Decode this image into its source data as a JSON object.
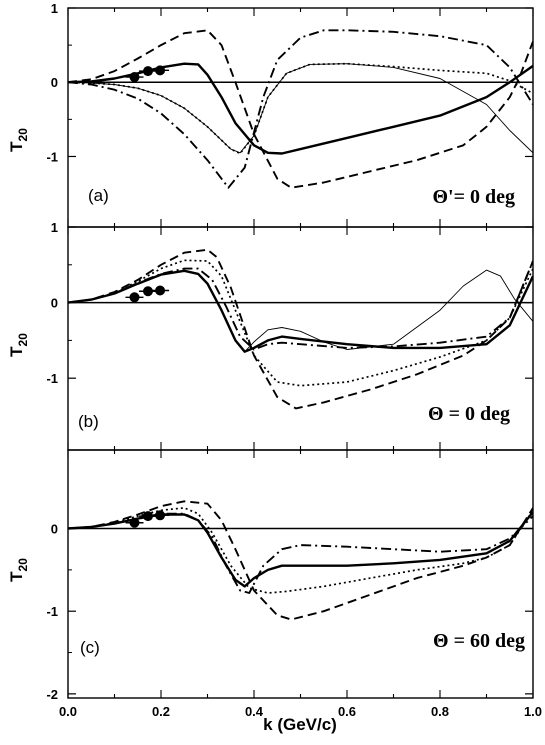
{
  "chart_data": {
    "type": "line",
    "xlabel": "k (GeV/c)",
    "xlim": [
      0.0,
      1.0
    ],
    "x_ticks": [
      "0.0",
      "0.2",
      "0.4",
      "0.6",
      "0.8",
      "1.0"
    ],
    "line_styles": [
      "solid-thick",
      "solid-thin",
      "dashed",
      "dotted",
      "dash-dot"
    ],
    "panels": [
      {
        "tag": "(a)",
        "angle_label": "Θ'= 0 deg",
        "ylabel_main": "T",
        "ylabel_sub": "20",
        "ylim": [
          -1.95,
          1.0
        ],
        "y_ticks": [
          {
            "value": 1,
            "label": "1"
          },
          {
            "value": 0,
            "label": "0"
          },
          {
            "value": -1,
            "label": "-1"
          }
        ],
        "data_points": [
          {
            "x": 0.143,
            "y": 0.07
          },
          {
            "x": 0.172,
            "y": 0.15
          },
          {
            "x": 0.198,
            "y": 0.16
          }
        ],
        "series": [
          {
            "style": "solid-thick",
            "x": [
              0,
              0.05,
              0.1,
              0.15,
              0.2,
              0.25,
              0.28,
              0.3,
              0.33,
              0.36,
              0.4,
              0.43,
              0.46,
              0.5,
              0.6,
              0.7,
              0.8,
              0.9,
              0.95,
              1.0
            ],
            "y": [
              0,
              0.01,
              0.05,
              0.12,
              0.2,
              0.25,
              0.24,
              0.1,
              -0.2,
              -0.55,
              -0.85,
              -0.95,
              -0.96,
              -0.9,
              -0.75,
              -0.6,
              -0.45,
              -0.2,
              0.0,
              0.22
            ]
          },
          {
            "style": "solid-thin",
            "x": [
              0,
              0.05,
              0.1,
              0.15,
              0.2,
              0.25,
              0.3,
              0.35,
              0.37,
              0.4,
              0.43,
              0.47,
              0.52,
              0.6,
              0.7,
              0.8,
              0.9,
              0.95,
              1.0
            ],
            "y": [
              0,
              -0.01,
              -0.03,
              -0.08,
              -0.18,
              -0.35,
              -0.6,
              -0.9,
              -0.95,
              -0.72,
              -0.2,
              0.12,
              0.24,
              0.25,
              0.2,
              0.05,
              -0.3,
              -0.65,
              -0.95
            ]
          },
          {
            "style": "dashed",
            "x": [
              0,
              0.05,
              0.1,
              0.15,
              0.2,
              0.25,
              0.3,
              0.33,
              0.36,
              0.4,
              0.45,
              0.48,
              0.55,
              0.65,
              0.75,
              0.85,
              0.9,
              0.95,
              0.97,
              1.0
            ],
            "y": [
              0,
              0.04,
              0.15,
              0.32,
              0.5,
              0.66,
              0.7,
              0.5,
              0.0,
              -0.7,
              -1.3,
              -1.42,
              -1.35,
              -1.2,
              -1.05,
              -0.85,
              -0.6,
              -0.2,
              0.05,
              0.55
            ]
          },
          {
            "style": "dotted",
            "x": [
              0,
              0.05,
              0.1,
              0.15,
              0.2,
              0.25,
              0.3,
              0.35,
              0.37,
              0.4,
              0.43,
              0.47,
              0.52,
              0.6,
              0.7,
              0.8,
              0.9,
              0.95,
              1.0
            ],
            "y": [
              0,
              -0.01,
              -0.03,
              -0.08,
              -0.18,
              -0.35,
              -0.6,
              -0.9,
              -0.96,
              -0.72,
              -0.2,
              0.12,
              0.24,
              0.25,
              0.21,
              0.16,
              0.12,
              0.02,
              -0.15
            ]
          },
          {
            "style": "dash-dot",
            "x": [
              0,
              0.05,
              0.1,
              0.15,
              0.2,
              0.25,
              0.3,
              0.345,
              0.38,
              0.42,
              0.45,
              0.5,
              0.55,
              0.6,
              0.7,
              0.8,
              0.9,
              0.95,
              1.0
            ],
            "y": [
              0,
              -0.03,
              -0.1,
              -0.22,
              -0.42,
              -0.7,
              -1.05,
              -1.42,
              -1.15,
              -0.2,
              0.3,
              0.6,
              0.7,
              0.7,
              0.68,
              0.62,
              0.5,
              0.2,
              -0.3
            ]
          }
        ]
      },
      {
        "tag": "(b)",
        "angle_label": "Θ = 0 deg",
        "ylabel_main": "T",
        "ylabel_sub": "20",
        "ylim": [
          -1.95,
          1.0
        ],
        "y_ticks": [
          {
            "value": 1,
            "label": "1"
          },
          {
            "value": 0,
            "label": "0"
          },
          {
            "value": -1,
            "label": "-1"
          }
        ],
        "data_points": [
          {
            "x": 0.143,
            "y": 0.07
          },
          {
            "x": 0.172,
            "y": 0.15
          },
          {
            "x": 0.198,
            "y": 0.16
          }
        ],
        "series": [
          {
            "style": "solid-thick",
            "x": [
              0,
              0.05,
              0.1,
              0.15,
              0.2,
              0.25,
              0.28,
              0.3,
              0.33,
              0.36,
              0.38,
              0.4,
              0.43,
              0.46,
              0.5,
              0.6,
              0.7,
              0.8,
              0.9,
              0.95,
              1.0
            ],
            "y": [
              0,
              0.04,
              0.12,
              0.25,
              0.37,
              0.42,
              0.38,
              0.25,
              -0.1,
              -0.5,
              -0.65,
              -0.6,
              -0.5,
              -0.45,
              -0.48,
              -0.55,
              -0.6,
              -0.6,
              -0.55,
              -0.3,
              0.35
            ]
          },
          {
            "style": "solid-thin",
            "x": [
              0,
              0.05,
              0.1,
              0.15,
              0.2,
              0.25,
              0.28,
              0.3,
              0.33,
              0.36,
              0.38,
              0.4,
              0.43,
              0.46,
              0.5,
              0.55,
              0.6,
              0.7,
              0.8,
              0.85,
              0.9,
              0.93,
              0.96,
              1.0
            ],
            "y": [
              0,
              0.04,
              0.12,
              0.25,
              0.37,
              0.42,
              0.38,
              0.25,
              -0.1,
              -0.5,
              -0.65,
              -0.52,
              -0.36,
              -0.33,
              -0.38,
              -0.52,
              -0.62,
              -0.55,
              -0.1,
              0.22,
              0.43,
              0.35,
              0.05,
              -0.25
            ]
          },
          {
            "style": "dashed",
            "x": [
              0,
              0.05,
              0.1,
              0.15,
              0.2,
              0.25,
              0.3,
              0.32,
              0.35,
              0.4,
              0.45,
              0.49,
              0.55,
              0.65,
              0.75,
              0.85,
              0.9,
              0.95,
              1.0
            ],
            "y": [
              0,
              0.04,
              0.14,
              0.3,
              0.5,
              0.66,
              0.7,
              0.6,
              0.2,
              -0.7,
              -1.25,
              -1.4,
              -1.32,
              -1.15,
              -0.95,
              -0.7,
              -0.5,
              -0.2,
              0.55
            ]
          },
          {
            "style": "dotted",
            "x": [
              0,
              0.05,
              0.1,
              0.15,
              0.2,
              0.25,
              0.3,
              0.33,
              0.36,
              0.4,
              0.45,
              0.5,
              0.6,
              0.7,
              0.8,
              0.9,
              0.95,
              1.0
            ],
            "y": [
              0,
              0.04,
              0.13,
              0.28,
              0.45,
              0.56,
              0.55,
              0.35,
              -0.1,
              -0.7,
              -1.05,
              -1.1,
              -1.05,
              -0.9,
              -0.72,
              -0.5,
              -0.2,
              0.45
            ]
          },
          {
            "style": "dash-dot",
            "x": [
              0,
              0.05,
              0.1,
              0.15,
              0.2,
              0.25,
              0.28,
              0.31,
              0.34,
              0.37,
              0.4,
              0.43,
              0.46,
              0.5,
              0.6,
              0.7,
              0.8,
              0.9,
              0.95,
              1.0
            ],
            "y": [
              0,
              0.04,
              0.12,
              0.26,
              0.38,
              0.45,
              0.45,
              0.3,
              -0.05,
              -0.45,
              -0.62,
              -0.55,
              -0.53,
              -0.55,
              -0.6,
              -0.58,
              -0.53,
              -0.45,
              -0.2,
              0.55
            ]
          }
        ]
      },
      {
        "tag": "(c)",
        "angle_label": "Θ = 60 deg",
        "ylabel_main": "T",
        "ylabel_sub": "20",
        "ylim": [
          -2.05,
          0.95
        ],
        "y_ticks": [
          {
            "value": 0,
            "label": "0"
          },
          {
            "value": -1,
            "label": "-1"
          },
          {
            "value": -2,
            "label": "-2"
          }
        ],
        "data_points": [
          {
            "x": 0.143,
            "y": 0.07
          },
          {
            "x": 0.172,
            "y": 0.15
          },
          {
            "x": 0.198,
            "y": 0.16
          }
        ],
        "series": [
          {
            "style": "solid-thick",
            "x": [
              0,
              0.05,
              0.1,
              0.15,
              0.2,
              0.25,
              0.28,
              0.3,
              0.33,
              0.36,
              0.38,
              0.4,
              0.43,
              0.46,
              0.5,
              0.6,
              0.7,
              0.8,
              0.9,
              0.95,
              1.0
            ],
            "y": [
              0,
              0.02,
              0.06,
              0.12,
              0.17,
              0.17,
              0.1,
              -0.05,
              -0.35,
              -0.62,
              -0.7,
              -0.6,
              -0.5,
              -0.45,
              -0.45,
              -0.45,
              -0.42,
              -0.38,
              -0.3,
              -0.15,
              0.2
            ]
          },
          {
            "style": "dashed",
            "x": [
              0,
              0.05,
              0.1,
              0.15,
              0.2,
              0.25,
              0.3,
              0.33,
              0.36,
              0.4,
              0.45,
              0.48,
              0.55,
              0.65,
              0.75,
              0.85,
              0.9,
              0.95,
              1.0
            ],
            "y": [
              0,
              0.02,
              0.08,
              0.17,
              0.27,
              0.33,
              0.3,
              0.1,
              -0.25,
              -0.75,
              -1.05,
              -1.1,
              -1.0,
              -0.8,
              -0.6,
              -0.45,
              -0.35,
              -0.2,
              0.25
            ]
          },
          {
            "style": "dotted",
            "x": [
              0,
              0.05,
              0.1,
              0.15,
              0.2,
              0.25,
              0.28,
              0.31,
              0.35,
              0.39,
              0.43,
              0.47,
              0.55,
              0.65,
              0.75,
              0.85,
              0.9,
              0.95,
              1.0
            ],
            "y": [
              0,
              0.02,
              0.07,
              0.15,
              0.22,
              0.25,
              0.18,
              -0.05,
              -0.45,
              -0.72,
              -0.78,
              -0.76,
              -0.7,
              -0.6,
              -0.5,
              -0.42,
              -0.35,
              -0.2,
              0.22
            ]
          },
          {
            "style": "dash-dot",
            "x": [
              0,
              0.05,
              0.1,
              0.15,
              0.2,
              0.25,
              0.28,
              0.31,
              0.34,
              0.37,
              0.39,
              0.42,
              0.46,
              0.5,
              0.6,
              0.7,
              0.8,
              0.9,
              0.95,
              1.0
            ],
            "y": [
              0,
              0.02,
              0.06,
              0.12,
              0.18,
              0.18,
              0.1,
              -0.1,
              -0.45,
              -0.75,
              -0.78,
              -0.45,
              -0.25,
              -0.2,
              -0.22,
              -0.25,
              -0.28,
              -0.25,
              -0.12,
              0.15
            ]
          }
        ]
      }
    ]
  }
}
